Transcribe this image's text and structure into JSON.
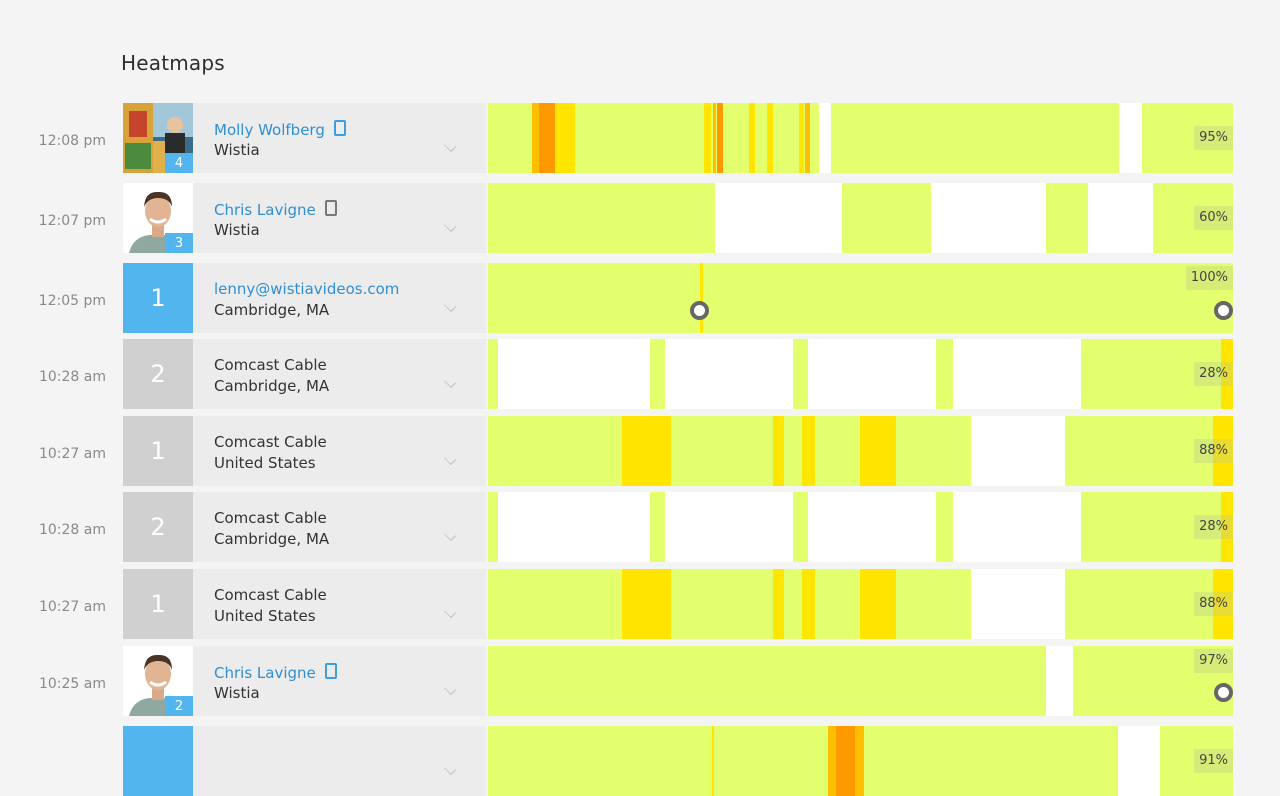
{
  "title": "Heatmaps",
  "colors": {
    "watched": "#e3ff6e",
    "rewatch_low": "#ffe500",
    "rewatch_mid": "#ffbf00",
    "rewatch_high": "#ff9900",
    "skipped": "#ffffff",
    "link": "#2f8fd3",
    "badge": "#53b5ee"
  },
  "rows": [
    {
      "time": "12:08 pm",
      "avatar": "photo-colorful",
      "avatar_count": "4",
      "name": "Molly Wolfberg",
      "name_is_link": true,
      "device": "mobile-icon-blue",
      "subtitle": "Wistia",
      "percent": "95%",
      "segments": [
        [
          0.059,
          0.012,
          "#ffbf00"
        ],
        [
          0.069,
          0.021,
          "#ff9900"
        ],
        [
          0.09,
          0.027,
          "#ffe500"
        ],
        [
          0.29,
          0.009,
          "#ffe500"
        ],
        [
          0.302,
          0.004,
          "#ffbf00"
        ],
        [
          0.307,
          0.009,
          "#ff9900"
        ],
        [
          0.35,
          0.008,
          "#ffe500"
        ],
        [
          0.374,
          0.009,
          "#ffe500"
        ],
        [
          0.418,
          0.006,
          "#ffe500"
        ],
        [
          0.425,
          0.007,
          "#ffbf00"
        ],
        [
          0.444,
          0.016,
          "#ffffff"
        ],
        [
          0.847,
          0.031,
          "#ffffff"
        ]
      ],
      "markers": []
    },
    {
      "time": "12:07 pm",
      "avatar": "photo-man",
      "avatar_count": "3",
      "name": "Chris Lavigne",
      "name_is_link": true,
      "device": "mobile-icon-gray",
      "subtitle": "Wistia",
      "percent": "60%",
      "segments": [
        [
          0.305,
          0.17,
          "#ffffff"
        ],
        [
          0.594,
          0.155,
          "#ffffff"
        ],
        [
          0.806,
          0.087,
          "#ffffff"
        ]
      ],
      "markers": []
    },
    {
      "time": "12:05 pm",
      "avatar": "number",
      "avatar_number": "1",
      "avatar_color": "#53b5ee",
      "name": "lenny@wistiavideos.com",
      "name_is_link": true,
      "device": "",
      "subtitle": "Cambridge, MA",
      "percent": "100%",
      "segments": [
        [
          0.285,
          0.003,
          "#ffe500"
        ]
      ],
      "markers": [
        0.283,
        0.986
      ]
    },
    {
      "time": "10:28 am",
      "avatar": "number",
      "avatar_number": "2",
      "avatar_color": "#d0d0d0",
      "name": "Comcast Cable",
      "name_is_link": false,
      "device": "",
      "subtitle": "Cambridge, MA",
      "percent": "28%",
      "segments": [
        [
          0.013,
          0.205,
          "#ffffff"
        ],
        [
          0.237,
          0.172,
          "#ffffff"
        ],
        [
          0.429,
          0.173,
          "#ffffff"
        ],
        [
          0.624,
          0.172,
          "#ffffff"
        ],
        [
          0.984,
          0.016,
          "#ffe500"
        ]
      ],
      "markers": []
    },
    {
      "time": "10:27 am",
      "avatar": "number",
      "avatar_number": "1",
      "avatar_color": "#d0d0d0",
      "name": "Comcast Cable",
      "name_is_link": false,
      "device": "",
      "subtitle": "United States",
      "percent": "88%",
      "segments": [
        [
          0.18,
          0.066,
          "#ffe500"
        ],
        [
          0.383,
          0.014,
          "#ffe500"
        ],
        [
          0.421,
          0.018,
          "#ffe500"
        ],
        [
          0.499,
          0.049,
          "#ffe500"
        ],
        [
          0.648,
          0.126,
          "#ffffff"
        ],
        [
          0.973,
          0.027,
          "#ffe500"
        ]
      ],
      "markers": []
    },
    {
      "time": "10:28 am",
      "avatar": "number",
      "avatar_number": "2",
      "avatar_color": "#d0d0d0",
      "name": "Comcast Cable",
      "name_is_link": false,
      "device": "",
      "subtitle": "Cambridge, MA",
      "percent": "28%",
      "segments": [
        [
          0.013,
          0.205,
          "#ffffff"
        ],
        [
          0.237,
          0.172,
          "#ffffff"
        ],
        [
          0.429,
          0.173,
          "#ffffff"
        ],
        [
          0.624,
          0.172,
          "#ffffff"
        ],
        [
          0.984,
          0.016,
          "#ffe500"
        ]
      ],
      "markers": []
    },
    {
      "time": "10:27 am",
      "avatar": "number",
      "avatar_number": "1",
      "avatar_color": "#d0d0d0",
      "name": "Comcast Cable",
      "name_is_link": false,
      "device": "",
      "subtitle": "United States",
      "percent": "88%",
      "segments": [
        [
          0.18,
          0.066,
          "#ffe500"
        ],
        [
          0.383,
          0.014,
          "#ffe500"
        ],
        [
          0.421,
          0.018,
          "#ffe500"
        ],
        [
          0.499,
          0.049,
          "#ffe500"
        ],
        [
          0.648,
          0.126,
          "#ffffff"
        ],
        [
          0.973,
          0.027,
          "#ffe500"
        ]
      ],
      "markers": []
    },
    {
      "time": "10:25 am",
      "avatar": "photo-man",
      "avatar_count": "2",
      "name": "Chris Lavigne",
      "name_is_link": true,
      "device": "mobile-icon-blue",
      "subtitle": "Wistia",
      "percent": "97%",
      "segments": [
        [
          0.749,
          0.036,
          "#ffffff"
        ]
      ],
      "markers": [
        0.986
      ]
    },
    {
      "time": "",
      "avatar": "number",
      "avatar_number": "",
      "avatar_color": "#53b5ee",
      "name": "",
      "name_is_link": true,
      "device": "",
      "subtitle": "",
      "percent": "91%",
      "segments": [
        [
          0.3,
          0.003,
          "#ffe500"
        ],
        [
          0.457,
          0.01,
          "#ffbf00"
        ],
        [
          0.467,
          0.025,
          "#ff9900"
        ],
        [
          0.492,
          0.013,
          "#ffbf00"
        ],
        [
          0.846,
          0.056,
          "#ffffff"
        ]
      ],
      "markers": []
    }
  ]
}
